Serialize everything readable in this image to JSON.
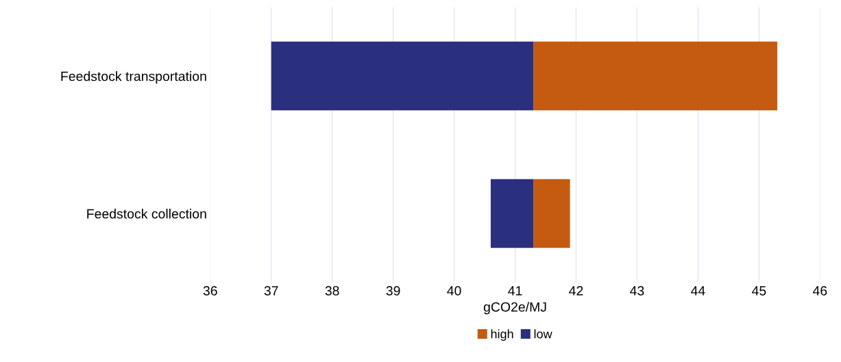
{
  "chart_data": {
    "type": "bar",
    "orientation": "horizontal",
    "xlabel": "gCO2e/MJ",
    "categories": [
      "Feedstock transportation",
      "Feedstock collection"
    ],
    "series": [
      {
        "name": "high",
        "color": "#c55a11",
        "base": [
          41.3,
          41.3
        ],
        "values": [
          4.0,
          0.6
        ]
      },
      {
        "name": "low",
        "color": "#2a2f7e",
        "base": [
          37.0,
          40.6
        ],
        "values": [
          4.3,
          0.7
        ]
      }
    ],
    "xlim": [
      36,
      46
    ],
    "xticks": [
      36,
      37,
      38,
      39,
      40,
      41,
      42,
      43,
      44,
      45,
      46
    ],
    "grid": "x",
    "legend": "bottom"
  }
}
